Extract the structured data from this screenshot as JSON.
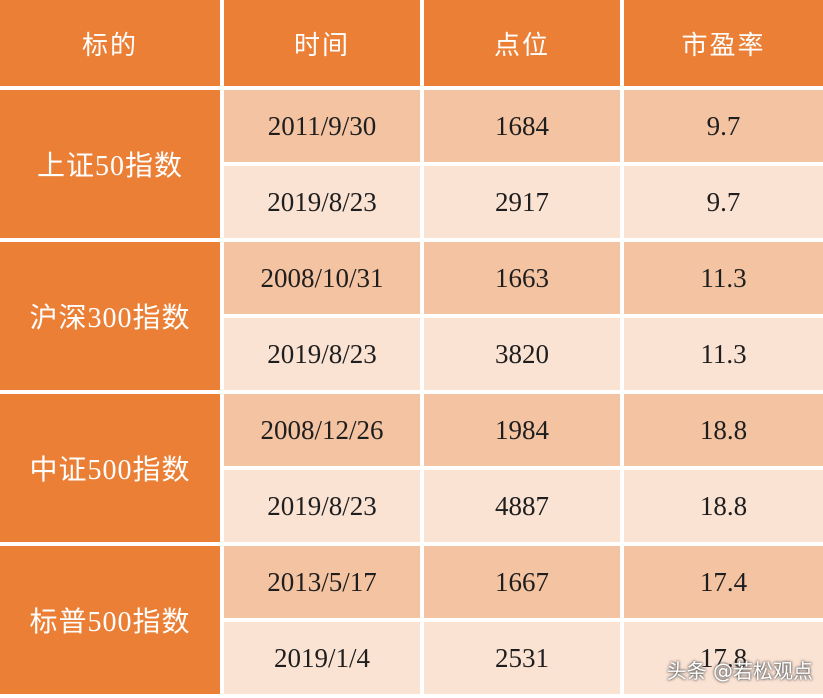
{
  "table": {
    "header": [
      "标的",
      "时间",
      "点位",
      "市盈率"
    ],
    "groups": [
      {
        "name": "上证50指数",
        "rows": [
          [
            "2011/9/30",
            "1684",
            "9.7"
          ],
          [
            "2019/8/23",
            "2917",
            "9.7"
          ]
        ]
      },
      {
        "name": "沪深300指数",
        "rows": [
          [
            "2008/10/31",
            "1663",
            "11.3"
          ],
          [
            "2019/8/23",
            "3820",
            "11.3"
          ]
        ]
      },
      {
        "name": "中证500指数",
        "rows": [
          [
            "2008/12/26",
            "1984",
            "18.8"
          ],
          [
            "2019/8/23",
            "4887",
            "18.8"
          ]
        ]
      },
      {
        "name": "标普500指数",
        "rows": [
          [
            "2013/5/17",
            "1667",
            "17.4"
          ],
          [
            "2019/1/4",
            "2531",
            "17.8"
          ]
        ]
      }
    ]
  },
  "watermark": "头条 @若松观点"
}
